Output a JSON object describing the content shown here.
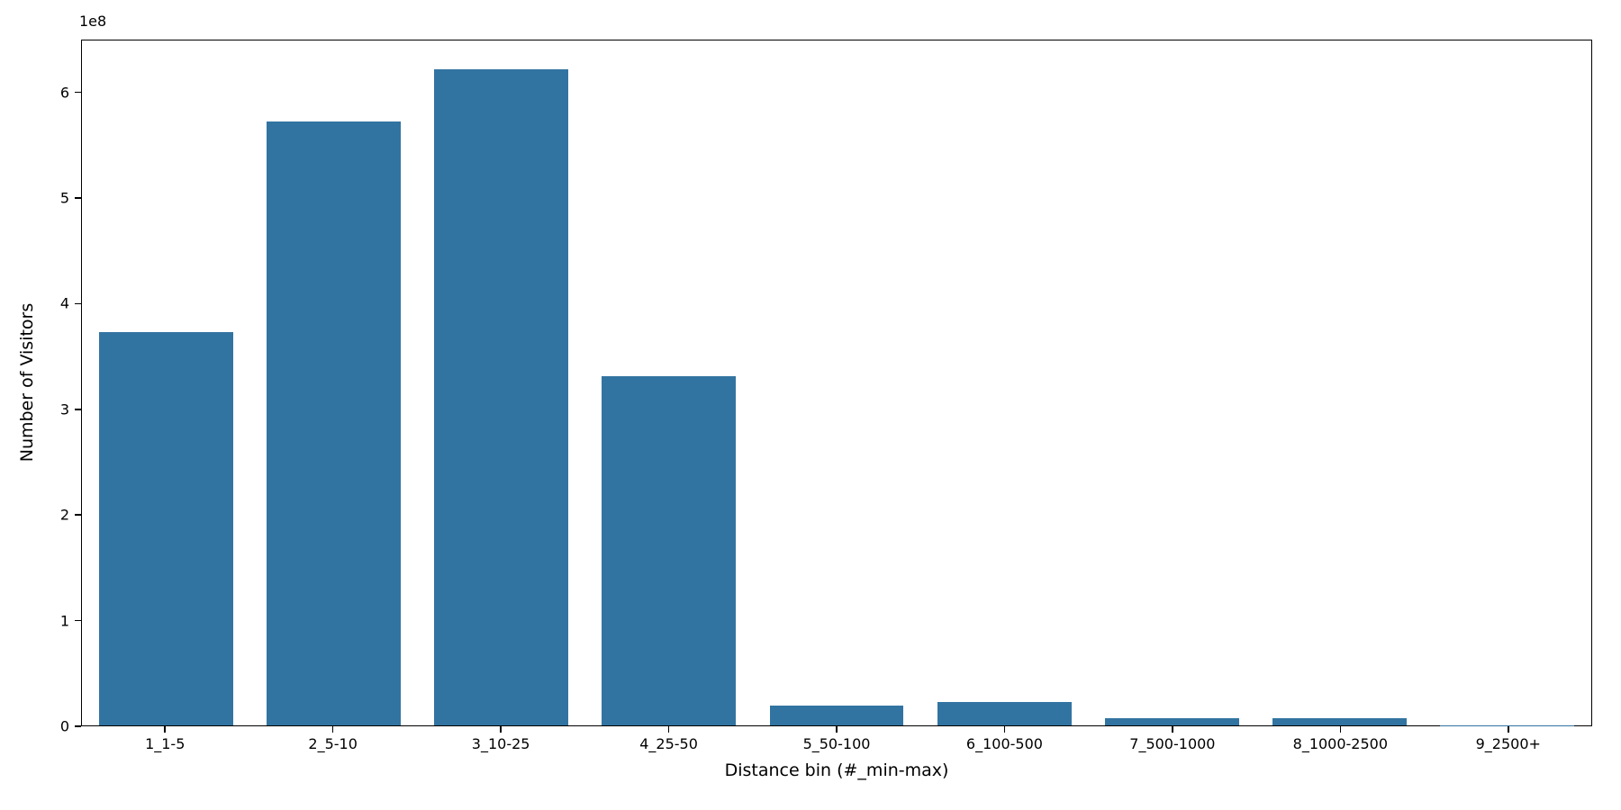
{
  "chart_data": {
    "type": "bar",
    "title": "",
    "xlabel": "Distance bin (#_min-max)",
    "ylabel": "Number of Visitors",
    "offset_text": "1e8",
    "categories": [
      "1_1-5",
      "2_5-10",
      "3_10-25",
      "4_25-50",
      "5_50-100",
      "6_100-500",
      "7_500-1000",
      "8_1000-2500",
      "9_2500+"
    ],
    "values": [
      373000000.0,
      573000000.0,
      623000000.0,
      331000000.0,
      19000000.0,
      22000000.0,
      7000000.0,
      6500000.0,
      400000.0
    ],
    "ylim": [
      0,
      650000000.0
    ],
    "yticks": [
      0,
      100000000.0,
      200000000.0,
      300000000.0,
      400000000.0,
      500000000.0,
      600000000.0
    ],
    "ytick_labels": [
      "0",
      "1",
      "2",
      "3",
      "4",
      "5",
      "6"
    ],
    "bar_color": "#3274a1",
    "grid": false,
    "legend": null
  }
}
